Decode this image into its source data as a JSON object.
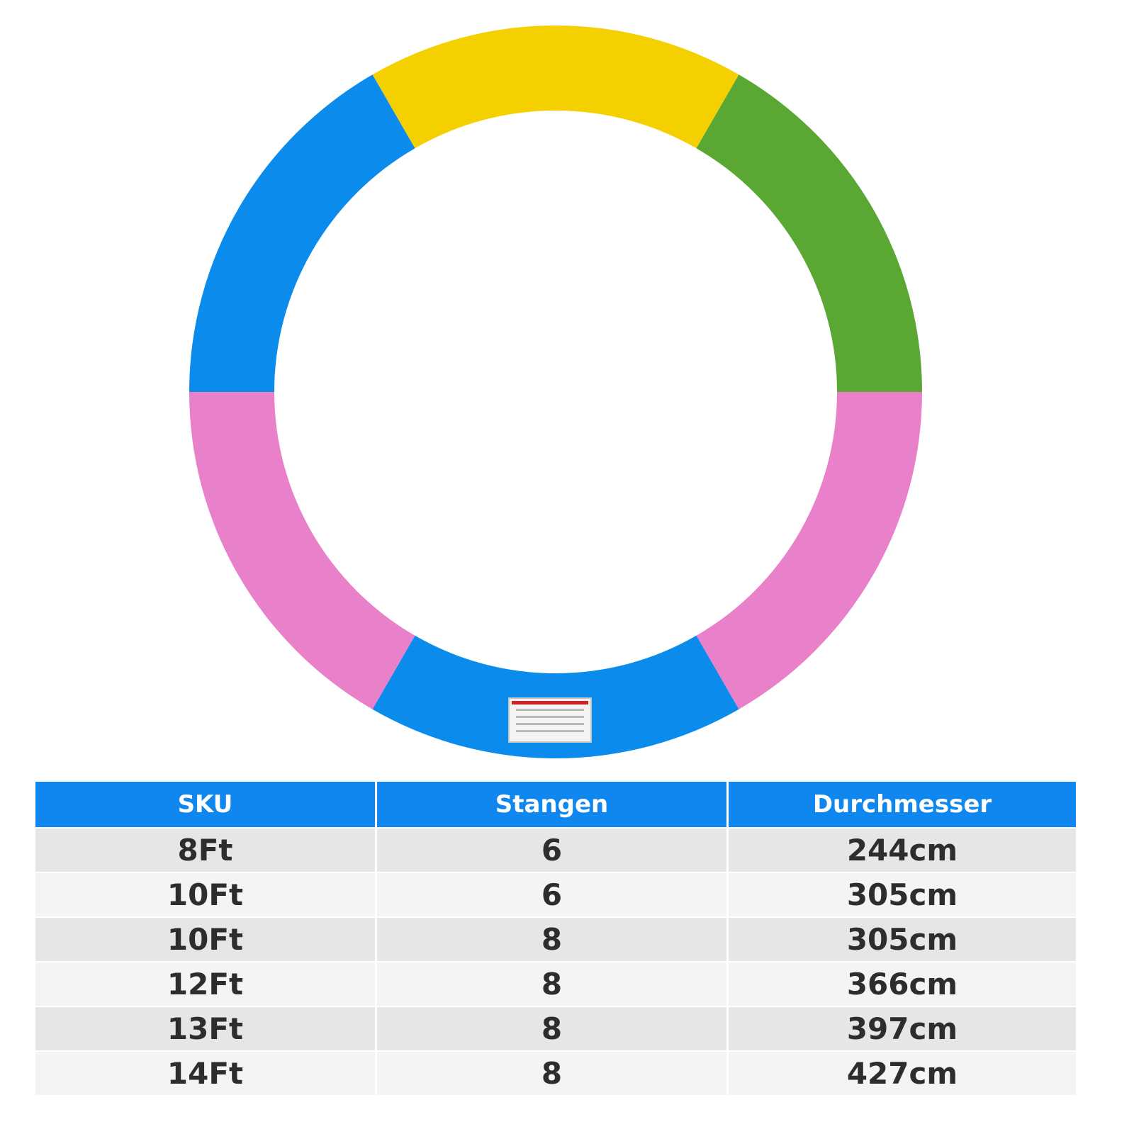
{
  "table": {
    "header": [
      "SKU",
      "Stangen",
      "Durchmesser"
    ],
    "rows": [
      [
        "8Ft",
        "6",
        "244cm"
      ],
      [
        "10Ft",
        "6",
        "305cm"
      ],
      [
        "10Ft",
        "8",
        "305cm"
      ],
      [
        "12Ft",
        "8",
        "366cm"
      ],
      [
        "13Ft",
        "8",
        "397cm"
      ],
      [
        "14Ft",
        "8",
        "427cm"
      ]
    ]
  }
}
